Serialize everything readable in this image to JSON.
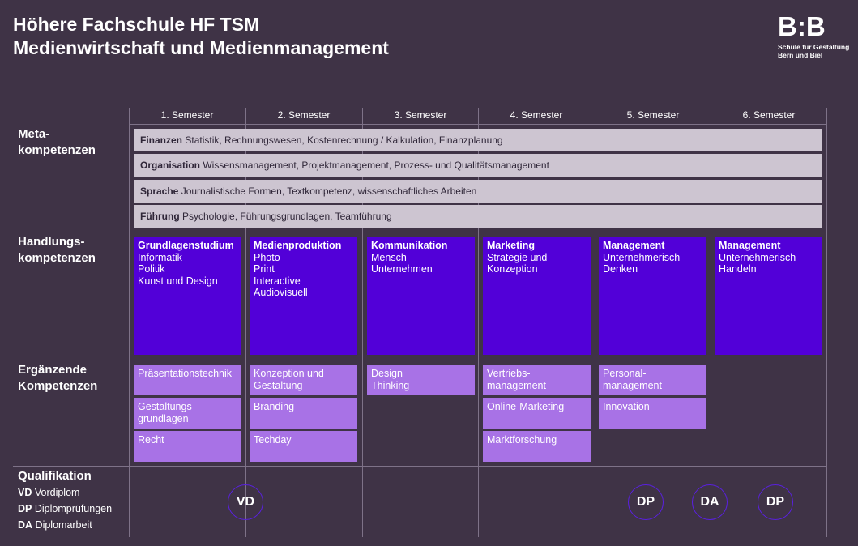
{
  "header": {
    "title_line1": "Höhere Fachschule HF TSM",
    "title_line2": "Medienwirtschaft und Medienmanagement"
  },
  "logo": {
    "mark": "B:B",
    "line1": "Schule für Gestaltung",
    "line2": "Bern und Biel"
  },
  "semesters": [
    "1. Semester",
    "2. Semester",
    "3. Semester",
    "4. Semester",
    "5. Semester",
    "6. Semester"
  ],
  "rows": {
    "meta_line1": "Meta-",
    "meta_line2": "kompetenzen",
    "hand_line1": "Handlungs-",
    "hand_line2": "kompetenzen",
    "erg_line1": "Ergänzende",
    "erg_line2": "Kompetenzen",
    "qual": "Qualifikation"
  },
  "meta": [
    {
      "title": "Finanzen",
      "text": "Statistik, Rechnungswesen, Kostenrechnung / Kalkulation, Finanzplanung"
    },
    {
      "title": "Organisation",
      "text": "Wissensmanagement, Projektmanagement, Prozess- und Qualitätsmanagement"
    },
    {
      "title": "Sprache",
      "text": "Journalistische Formen, Textkompetenz, wissenschaftliches Arbeiten"
    },
    {
      "title": "Führung",
      "text": "Psychologie, Führungsgrundlagen, Teamführung"
    }
  ],
  "handlung": [
    {
      "title": "Grundlagenstudium",
      "lines": [
        "Informatik",
        "Politik",
        "Kunst und Design"
      ]
    },
    {
      "title": "Medienproduktion",
      "lines": [
        "Photo",
        "Print",
        "Interactive",
        "Audiovisuell"
      ]
    },
    {
      "title": "Kommunikation",
      "lines": [
        "Mensch",
        "Unternehmen"
      ]
    },
    {
      "title": "Marketing",
      "lines": [
        "Strategie und",
        "Konzeption"
      ]
    },
    {
      "title": "Management",
      "lines": [
        "Unternehmerisch",
        "Denken"
      ]
    },
    {
      "title": "Management",
      "lines": [
        "Unternehmerisch",
        "Handeln"
      ]
    }
  ],
  "ergaenzend": [
    [
      {
        "lines": [
          "Präsentationstechnik"
        ]
      },
      {
        "lines": [
          "Gestaltungs-",
          "grundlagen"
        ]
      },
      {
        "lines": [
          "Recht"
        ]
      }
    ],
    [
      {
        "lines": [
          "Konzeption und",
          "Gestaltung"
        ]
      },
      {
        "lines": [
          "Branding"
        ]
      },
      {
        "lines": [
          "Techday"
        ]
      }
    ],
    [
      {
        "lines": [
          "Design",
          "Thinking"
        ]
      }
    ],
    [
      {
        "lines": [
          "Vertriebs-",
          "management"
        ]
      },
      {
        "lines": [
          "Online-Marketing"
        ]
      },
      {
        "lines": [
          "Marktforschung"
        ]
      }
    ],
    [
      {
        "lines": [
          "Personal-",
          "management"
        ]
      },
      {
        "lines": [
          "Innovation"
        ]
      }
    ],
    []
  ],
  "qualifikation": {
    "legend": [
      {
        "abbr": "VD",
        "text": "Vordiplom"
      },
      {
        "abbr": "DP",
        "text": "Diplomprüfungen"
      },
      {
        "abbr": "DA",
        "text": "Diplomarbeit"
      }
    ],
    "badges": [
      "VD",
      "DP",
      "DA",
      "DP"
    ]
  },
  "colors": {
    "background": "#3f3346",
    "meta_bar": "#cdc5d1",
    "handlung": "#5200d8",
    "ergaenzend": "#a872e6",
    "badge_border": "#5a20e0"
  }
}
